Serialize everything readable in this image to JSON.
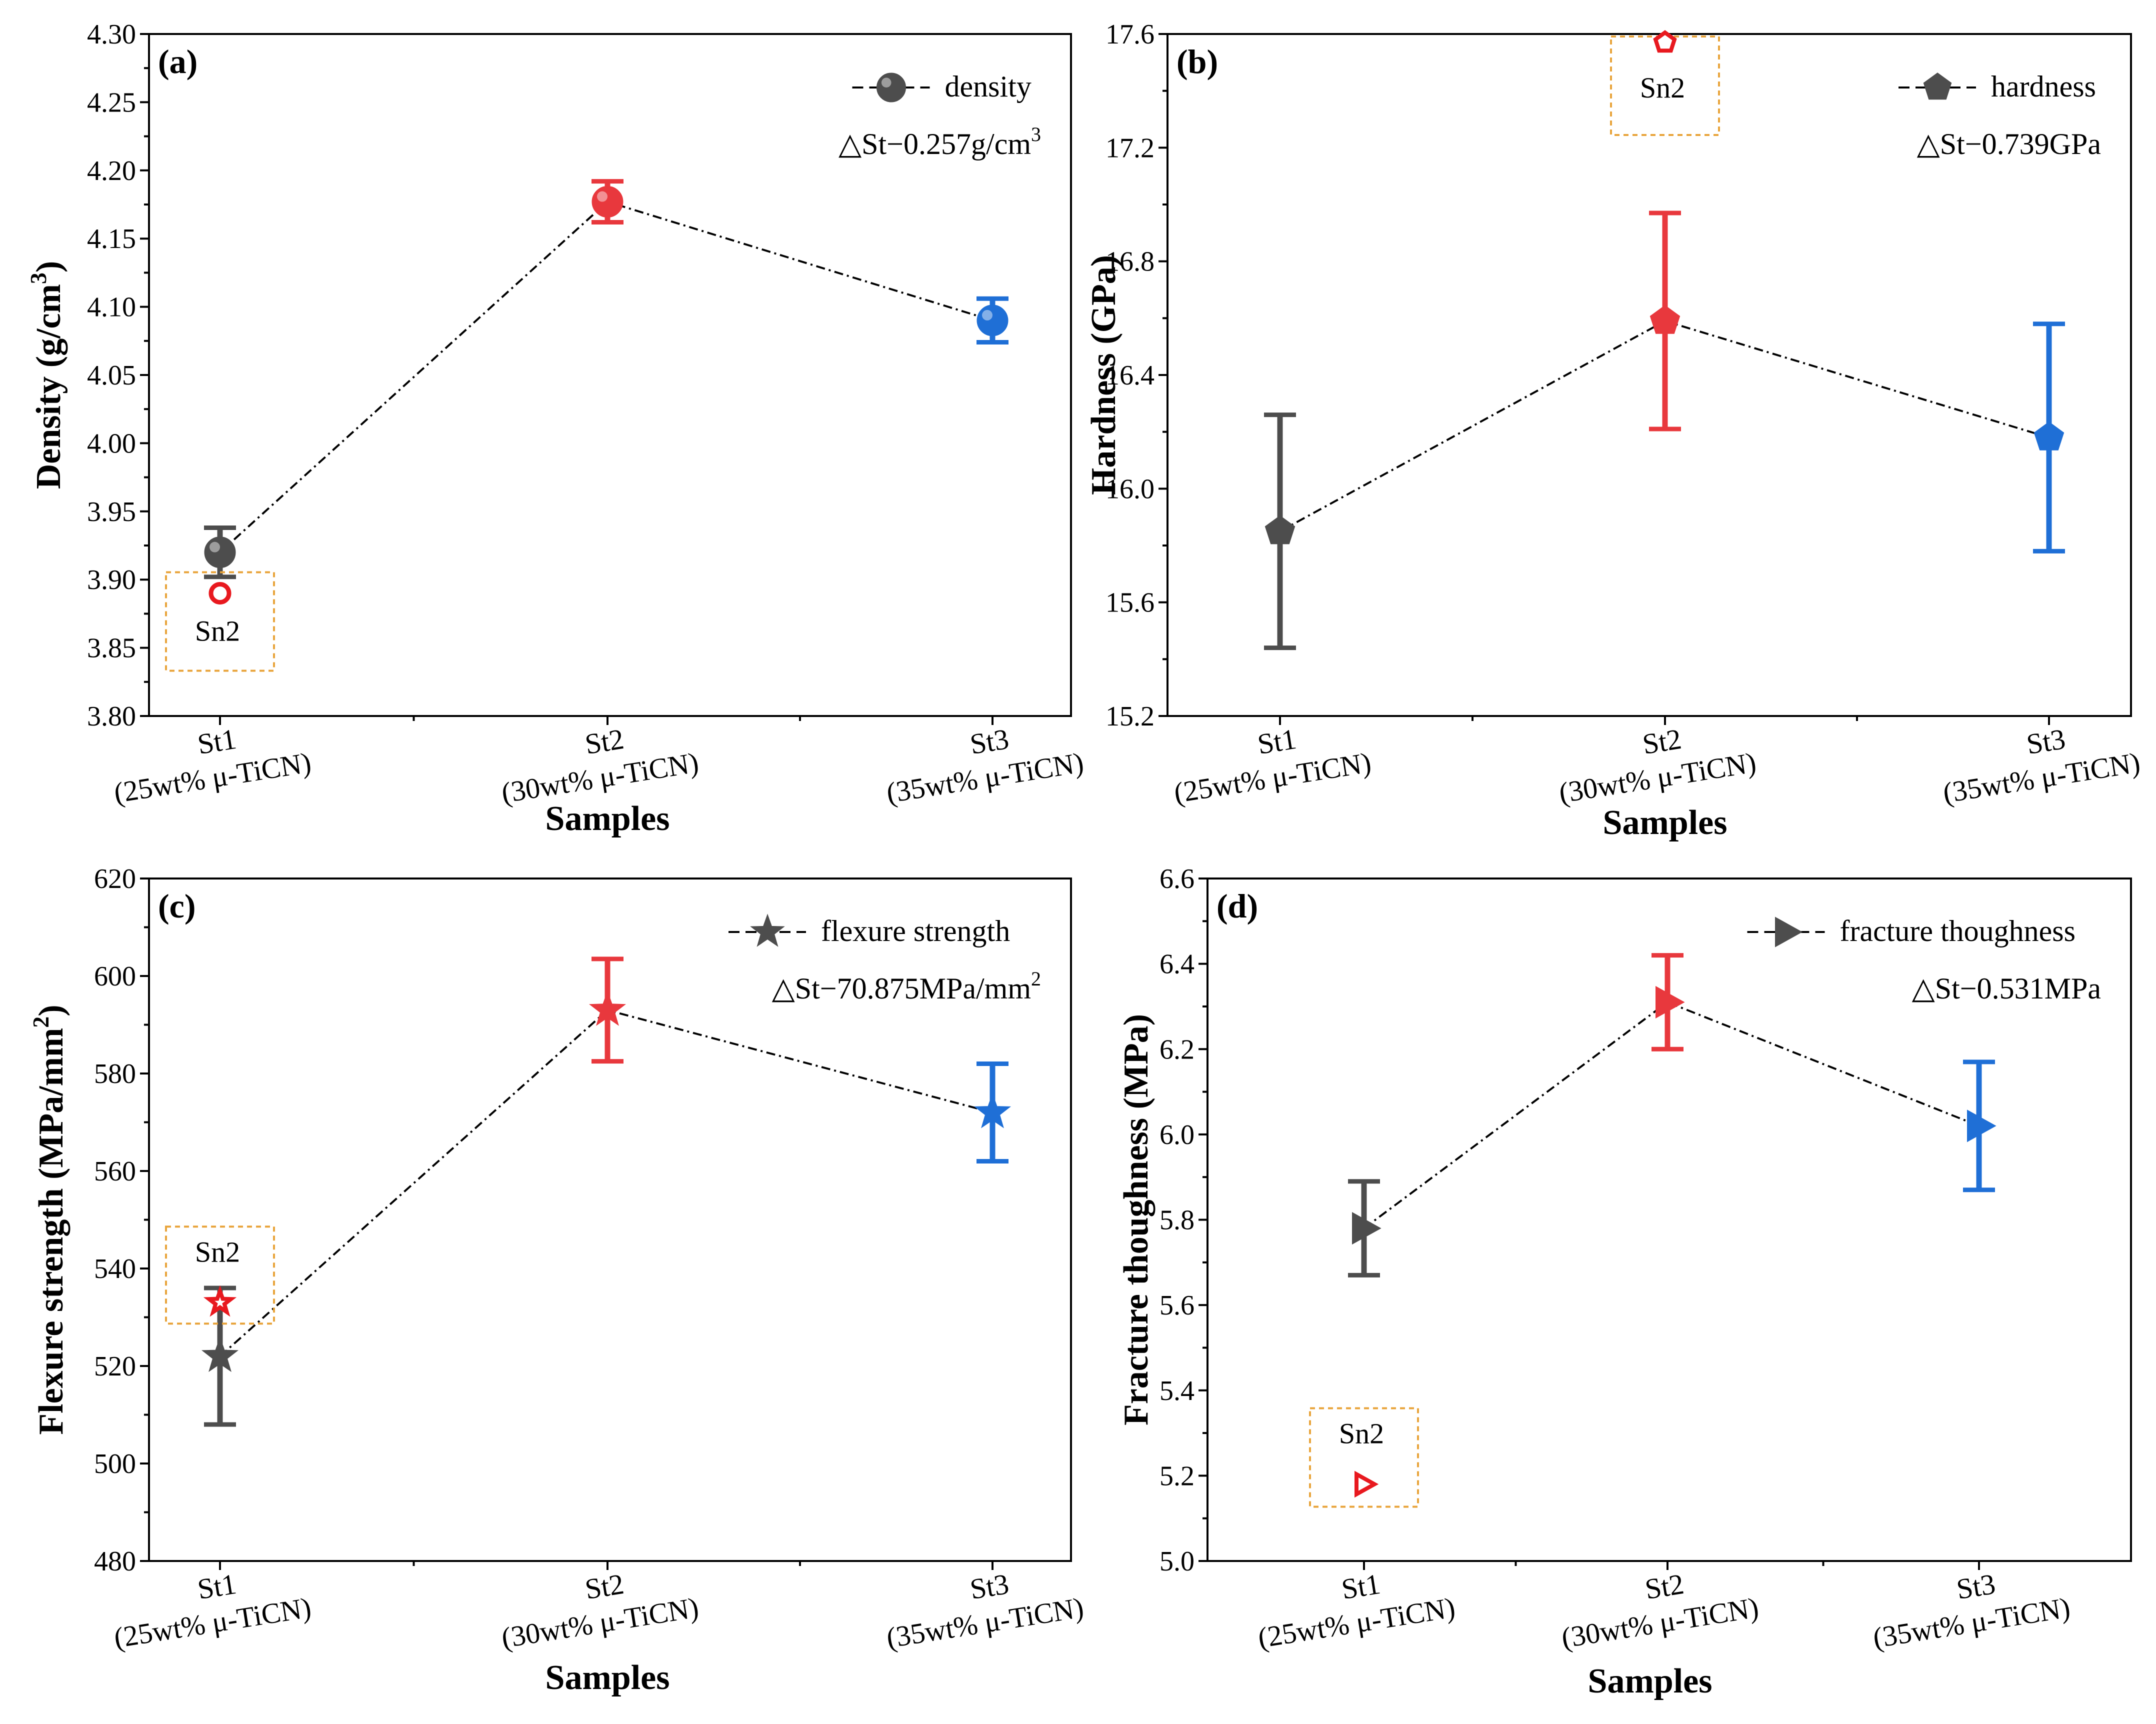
{
  "figure_title": "",
  "x_axis_title": "Samples",
  "chart_data": [
    {
      "type": "scatter",
      "panel_label": "(a)",
      "ylabel": "Density (g/cm3)",
      "ylabel_main": "Density (g/cm",
      "ylabel_sup": "3",
      "ylabel_end": ")",
      "xlabel": "Samples",
      "ylim": [
        3.8,
        4.3
      ],
      "yticks": [
        "3.80",
        "3.85",
        "3.90",
        "3.95",
        "4.00",
        "4.05",
        "4.10",
        "4.15",
        "4.20",
        "4.25",
        "4.30"
      ],
      "marker": "circle",
      "categories": [
        {
          "name": "St1",
          "detail": "(25wt%  μ-TiCN)"
        },
        {
          "name": "St2",
          "detail": "(30wt%  μ-TiCN)"
        },
        {
          "name": "St3",
          "detail": "(35wt% μ-TiCN)"
        }
      ],
      "series": [
        {
          "name": "density",
          "values": [
            3.92,
            4.177,
            4.09
          ],
          "errors": [
            0.018,
            0.015,
            0.016
          ],
          "colors": [
            "#4d4d4d",
            "#e8383d",
            "#1f6fd6"
          ]
        }
      ],
      "legend": {
        "label": "density",
        "position": "top-right"
      },
      "delta": {
        "main": "△St−0.257g/cm",
        "sup": "3"
      },
      "reference": {
        "label": "Sn2",
        "value": 3.89,
        "category_index": 0,
        "color": "#e8191f"
      }
    },
    {
      "type": "scatter",
      "panel_label": "(b)",
      "ylabel": "Hardness (GPa)",
      "ylabel_main": "Hardness (GPa)",
      "ylabel_sup": "",
      "ylabel_end": "",
      "xlabel": "Samples",
      "ylim": [
        15.2,
        17.6
      ],
      "yticks": [
        "15.2",
        "15.6",
        "16.0",
        "16.4",
        "16.8",
        "17.2",
        "17.6"
      ],
      "marker": "pentagon",
      "categories": [
        {
          "name": "St1",
          "detail": "(25wt%  μ-TiCN)"
        },
        {
          "name": "St2",
          "detail": "(30wt%  μ-TiCN)"
        },
        {
          "name": "St3",
          "detail": "(35wt%  μ-TiCN)"
        }
      ],
      "series": [
        {
          "name": "hardness",
          "values": [
            15.85,
            16.59,
            16.18
          ],
          "errors": [
            0.41,
            0.38,
            0.4
          ],
          "colors": [
            "#4d4d4d",
            "#e8383d",
            "#1f6fd6"
          ]
        }
      ],
      "legend": {
        "label": "hardness",
        "position": "top-right"
      },
      "delta": {
        "main": "△St−0.739GPa",
        "sup": ""
      },
      "reference": {
        "label": "Sn2",
        "value": 17.57,
        "category_index": 1,
        "color": "#e8191f"
      }
    },
    {
      "type": "scatter",
      "panel_label": "(c)",
      "ylabel": "Flexure strength (MPa/mm2)",
      "ylabel_main": "Flexure strength (MPa/mm",
      "ylabel_sup": "2",
      "ylabel_end": ")",
      "xlabel": "Samples",
      "ylim": [
        480,
        620
      ],
      "yticks": [
        "480",
        "500",
        "520",
        "540",
        "560",
        "580",
        "600",
        "620"
      ],
      "marker": "star",
      "categories": [
        {
          "name": "St1",
          "detail": "(25wt%  μ-TiCN)"
        },
        {
          "name": "St2",
          "detail": "(30wt%  μ-TiCN)"
        },
        {
          "name": "St3",
          "detail": "(35wt%  μ-TiCN)"
        }
      ],
      "series": [
        {
          "name": "flexure strength",
          "values": [
            522,
            593,
            572
          ],
          "errors": [
            14,
            10.5,
            10
          ],
          "colors": [
            "#4d4d4d",
            "#e8383d",
            "#1f6fd6"
          ]
        }
      ],
      "legend": {
        "label": "flexure strength",
        "position": "top-right"
      },
      "delta": {
        "main": "△St−70.875MPa/mm",
        "sup": "2"
      },
      "reference": {
        "label": "Sn2",
        "value": 533,
        "category_index": 0,
        "color": "#e8191f"
      }
    },
    {
      "type": "scatter",
      "panel_label": "(d)",
      "ylabel": "Fracture thoughness (MPa)",
      "ylabel_main": "Fracture thoughness (MPa)",
      "ylabel_sup": "",
      "ylabel_end": "",
      "xlabel": "Samples",
      "ylim": [
        5.0,
        6.6
      ],
      "yticks": [
        "5.0",
        "5.2",
        "5.4",
        "5.6",
        "5.8",
        "6.0",
        "6.2",
        "6.4",
        "6.6"
      ],
      "marker": "triangle-right",
      "categories": [
        {
          "name": "St1",
          "detail": "(25wt%  μ-TiCN)"
        },
        {
          "name": "St2",
          "detail": "(30wt%  μ-TiCN)"
        },
        {
          "name": "St3",
          "detail": "(35wt%  μ-TiCN)"
        }
      ],
      "series": [
        {
          "name": "fracture thoughness",
          "values": [
            5.78,
            6.31,
            6.02
          ],
          "errors": [
            0.11,
            0.11,
            0.15
          ],
          "colors": [
            "#4d4d4d",
            "#e8383d",
            "#1f6fd6"
          ]
        }
      ],
      "legend": {
        "label": "fracture thoughness",
        "position": "top-right"
      },
      "delta": {
        "main": "△St−0.531MPa",
        "sup": ""
      },
      "reference": {
        "label": "Sn2",
        "value": 5.18,
        "category_index": 0,
        "color": "#e8191f"
      }
    }
  ]
}
